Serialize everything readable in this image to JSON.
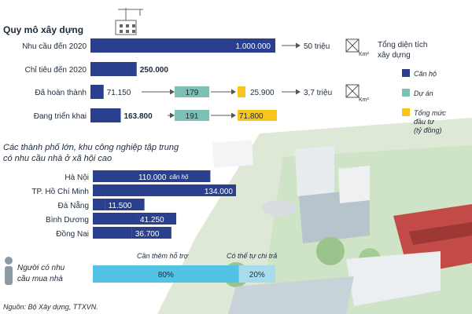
{
  "colors": {
    "navy": "#2b3f8f",
    "teal": "#7cc0b4",
    "yellow": "#f7c51b",
    "cyan": "#52c3e4",
    "light_blue": "#a7dced",
    "gray": "#8e9aa4",
    "text": "#1d2a3a"
  },
  "sections": {
    "scale_title": "Quy mô xây dựng",
    "cities_title_line1": "Các thành phố lớn, khu công nghiệp tập trung",
    "cities_title_line2": "có nhu cầu nhà ở xã hội cao",
    "people_label_line1": "Người có nhu",
    "people_label_line2": "cầu mua nhà",
    "source": "Nguồn: Bộ Xây dựng, TTXVN."
  },
  "legend": [
    {
      "label": "Căn hộ",
      "color": "#2b3f8f"
    },
    {
      "label": "Dự án",
      "color": "#7cc0b4"
    },
    {
      "label": "Tổng mức đầu tư (tỷ đồng)",
      "color": "#f7c51b"
    }
  ],
  "area_note": {
    "line1": "Tổng diện tích",
    "line2": "xây dựng",
    "unit": "Km²"
  },
  "chart_data": [
    {
      "type": "bar",
      "title": "Quy mô xây dựng",
      "categories": [
        "Nhu cầu đến 2020",
        "Chỉ tiêu đến 2020",
        "Đã hoàn thành",
        "Đang triển khai"
      ],
      "series": [
        {
          "name": "Căn hộ",
          "values": [
            1000000,
            250000,
            71150,
            163800
          ],
          "labels": [
            "1.000.000",
            "250.000",
            "71.150",
            "163.800"
          ]
        },
        {
          "name": "Dự án",
          "values": [
            null,
            null,
            179,
            191
          ],
          "labels": [
            "",
            "",
            "179",
            "191"
          ]
        },
        {
          "name": "Tổng mức đầu tư (tỷ đồng)",
          "values": [
            null,
            null,
            25900,
            71800
          ],
          "labels": [
            "",
            "",
            "25.900",
            "71.800"
          ]
        }
      ],
      "area": {
        "values": [
          50,
          null,
          3.7,
          null
        ],
        "labels": [
          "50 triệu",
          "",
          "3,7 triệu",
          ""
        ]
      },
      "xlim": [
        0,
        1000000
      ]
    },
    {
      "type": "bar",
      "title": "Các thành phố lớn, khu công nghiệp tập trung có nhu cầu nhà ở xã hội cao",
      "categories": [
        "Hà Nội",
        "TP. Hồ Chí Minh",
        "Đà Nẵng",
        "Bình Dương",
        "Đồng Nai"
      ],
      "values": [
        110000,
        134000,
        11500,
        41250,
        36700
      ],
      "labels": [
        "110.000",
        "134.000",
        "11.500",
        "41.250",
        "36.700"
      ],
      "unit_note": "căn hộ",
      "xlim": [
        0,
        134000
      ]
    },
    {
      "type": "bar",
      "title": "Người có nhu cầu mua nhà",
      "categories": [
        "Cần thêm hỗ trợ",
        "Có thể tự chi trả"
      ],
      "values": [
        80,
        20
      ],
      "labels": [
        "80%",
        "20%"
      ]
    }
  ]
}
